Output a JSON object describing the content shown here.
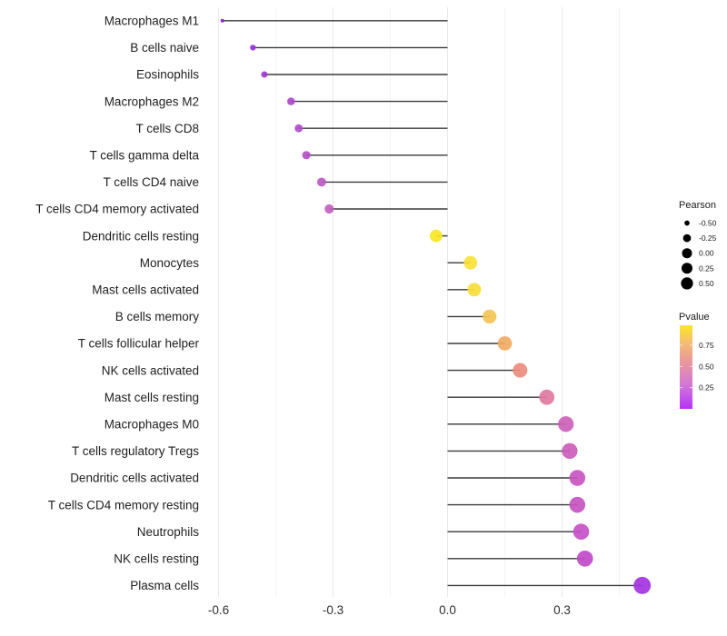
{
  "chart_data": {
    "type": "scatter",
    "variant": "lollipop",
    "orientation": "horizontal",
    "title": "",
    "xlabel": "",
    "ylabel": "",
    "grid": true,
    "baseline_x": 0,
    "xlim": [
      -0.64,
      0.56
    ],
    "x_tick_labels": [
      "-0.6",
      "-0.3",
      "0.0",
      "0.3"
    ],
    "x_tick_values": [
      -0.6,
      -0.3,
      0.0,
      0.3
    ],
    "x_minor_tick_values": [
      -0.45,
      -0.15,
      0.15,
      0.45
    ],
    "categories": [
      "Macrophages M1",
      "B cells naive",
      "Eosinophils",
      "Macrophages M2",
      "T cells CD8",
      "T cells gamma delta",
      "T cells CD4 naive",
      "T cells CD4 memory activated",
      "Dendritic cells resting",
      "Monocytes",
      "Mast cells activated",
      "B cells memory",
      "T cells follicular helper",
      "NK cells activated",
      "Mast cells resting",
      "Macrophages M0",
      "T cells regulatory  Tregs",
      "Dendritic cells activated",
      "T cells CD4 memory resting",
      "Neutrophils",
      "NK cells resting",
      "Plasma cells"
    ],
    "series": [
      {
        "name": "Pearson",
        "values": [
          -0.59,
          -0.51,
          -0.48,
          -0.41,
          -0.39,
          -0.37,
          -0.33,
          -0.31,
          -0.03,
          0.06,
          0.07,
          0.11,
          0.15,
          0.19,
          0.26,
          0.31,
          0.32,
          0.34,
          0.34,
          0.35,
          0.36,
          0.51
        ]
      },
      {
        "name": "Pvalue (estimated from color)",
        "values": [
          0.004,
          0.015,
          0.02,
          0.05,
          0.06,
          0.07,
          0.1,
          0.12,
          0.97,
          0.9,
          0.88,
          0.74,
          0.61,
          0.47,
          0.36,
          0.18,
          0.17,
          0.14,
          0.13,
          0.12,
          0.1,
          0.015
        ]
      }
    ],
    "point_colors": [
      "#7f23c4",
      "#9a30d8",
      "#a138d4",
      "#ae47ce",
      "#b24ccb",
      "#b651c9",
      "#bd59c5",
      "#c35fc1",
      "#f9e723",
      "#f8e136",
      "#f7dd3b",
      "#f3c455",
      "#f0ab64",
      "#eb8d7d",
      "#e07aa1",
      "#cd61b8",
      "#cb5dbb",
      "#c855c0",
      "#c753c2",
      "#c550c5",
      "#c14aca",
      "#a433e0"
    ],
    "legend_position": "right"
  },
  "legend": {
    "size": {
      "title": "Pearson",
      "labels": [
        "-0.50",
        "-0.25",
        "0.00",
        "0.25",
        "0.50"
      ],
      "values": [
        -0.5,
        -0.25,
        0.0,
        0.25,
        0.5
      ],
      "dot_color": "#000000"
    },
    "color": {
      "title": "Pvalue",
      "labels": [
        "0.75",
        "0.50",
        "0.25"
      ],
      "values": [
        0.75,
        0.5,
        0.25
      ],
      "gradient_stops": [
        {
          "o": 0.0,
          "c": "#fbe723"
        },
        {
          "o": 0.2,
          "c": "#f5bf70"
        },
        {
          "o": 0.4,
          "c": "#eb9d96"
        },
        {
          "o": 0.55,
          "c": "#e18ab4"
        },
        {
          "o": 0.7,
          "c": "#d378d4"
        },
        {
          "o": 0.85,
          "c": "#c557e8"
        },
        {
          "o": 1.0,
          "c": "#b732f2"
        }
      ]
    }
  },
  "colors": {
    "background": "#ffffff",
    "stem": "#3a3a3a",
    "grid_major": "#e9e9e9",
    "grid_minor": "#f4f4f4",
    "axis_text": "#303030",
    "label_text": "#1f1f1f"
  }
}
